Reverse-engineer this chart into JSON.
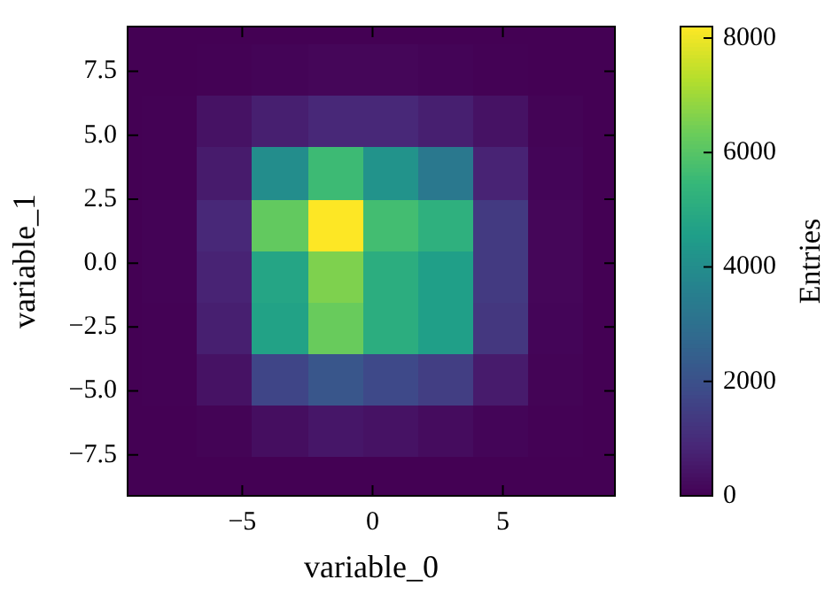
{
  "chart_data": {
    "type": "heatmap",
    "xlabel": "variable_0",
    "ylabel": "variable_1",
    "clabel": "Entries",
    "x": [
      -7.79,
      -5.67,
      -3.55,
      -1.43,
      0.69,
      2.81,
      4.93,
      7.05
    ],
    "y": [
      7.54,
      5.52,
      3.5,
      1.48,
      -0.54,
      -2.56,
      -4.58,
      -6.6
    ],
    "xlim": [
      -9.4,
      9.3
    ],
    "ylim": [
      -9.1,
      9.25
    ],
    "xticks": [
      {
        "value": -5,
        "label": "−5"
      },
      0,
      5
    ],
    "yticks": [
      {
        "value": -7.5,
        "label": "−7.5"
      },
      {
        "value": -5,
        "label": "−5.0"
      },
      {
        "value": -2.5,
        "label": "−2.5"
      },
      {
        "value": 0,
        "label": "0.0"
      },
      2.5,
      {
        "value": 5,
        "label": "5.0"
      },
      7.5
    ],
    "clim": [
      0,
      8200
    ],
    "cticks": [
      0,
      2000,
      4000,
      6000,
      8000
    ],
    "cells": [
      [
        10,
        30,
        80,
        120,
        120,
        80,
        30,
        10
      ],
      [
        20,
        400,
        700,
        900,
        900,
        700,
        400,
        60
      ],
      [
        30,
        600,
        4000,
        5600,
        4200,
        3300,
        800,
        100
      ],
      [
        40,
        900,
        6200,
        8200,
        5700,
        5200,
        1400,
        120
      ],
      [
        40,
        800,
        4800,
        6600,
        5100,
        4600,
        1400,
        120
      ],
      [
        30,
        700,
        4700,
        6300,
        5100,
        4600,
        1300,
        100
      ],
      [
        20,
        400,
        1700,
        2200,
        1800,
        1500,
        600,
        60
      ],
      [
        10,
        60,
        300,
        500,
        400,
        250,
        100,
        20
      ]
    ]
  }
}
